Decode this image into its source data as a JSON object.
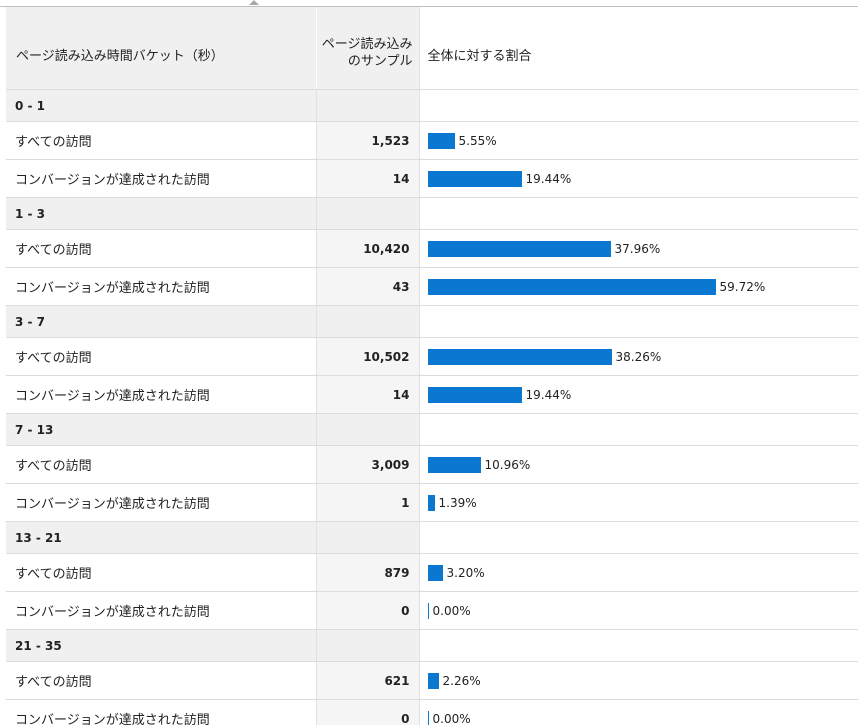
{
  "table": {
    "headers": {
      "bucket": "ページ読み込み時間バケット（秒）",
      "samples": "ページ読み込みのサンプル",
      "share": "全体に対する割合"
    },
    "groups": [
      {
        "label": "0 - 1",
        "rows": [
          {
            "label": "すべての訪問",
            "samples": "1,523",
            "percent": "5.55%",
            "fraction": 0.0555
          },
          {
            "label": "コンバージョンが達成された訪問",
            "samples": "14",
            "percent": "19.44%",
            "fraction": 0.1944
          }
        ]
      },
      {
        "label": "1 - 3",
        "rows": [
          {
            "label": "すべての訪問",
            "samples": "10,420",
            "percent": "37.96%",
            "fraction": 0.3796
          },
          {
            "label": "コンバージョンが達成された訪問",
            "samples": "43",
            "percent": "59.72%",
            "fraction": 0.5972
          }
        ]
      },
      {
        "label": "3 - 7",
        "rows": [
          {
            "label": "すべての訪問",
            "samples": "10,502",
            "percent": "38.26%",
            "fraction": 0.3826
          },
          {
            "label": "コンバージョンが達成された訪問",
            "samples": "14",
            "percent": "19.44%",
            "fraction": 0.1944
          }
        ]
      },
      {
        "label": "7 - 13",
        "rows": [
          {
            "label": "すべての訪問",
            "samples": "3,009",
            "percent": "10.96%",
            "fraction": 0.1096
          },
          {
            "label": "コンバージョンが達成された訪問",
            "samples": "1",
            "percent": "1.39%",
            "fraction": 0.0139
          }
        ]
      },
      {
        "label": "13 - 21",
        "rows": [
          {
            "label": "すべての訪問",
            "samples": "879",
            "percent": "3.20%",
            "fraction": 0.032
          },
          {
            "label": "コンバージョンが達成された訪問",
            "samples": "0",
            "percent": "0.00%",
            "fraction": 0.0
          }
        ]
      },
      {
        "label": "21 - 35",
        "rows": [
          {
            "label": "すべての訪問",
            "samples": "621",
            "percent": "2.26%",
            "fraction": 0.0226
          },
          {
            "label": "コンバージョンが達成された訪問",
            "samples": "0",
            "percent": "0.00%",
            "fraction": 0.0
          }
        ]
      }
    ]
  },
  "colors": {
    "bar": "#0a77d0",
    "header_bg": "#f0f0f0",
    "value_bg": "#f5f5f5"
  },
  "icons": {
    "sort": "sort-caret-up-icon"
  }
}
